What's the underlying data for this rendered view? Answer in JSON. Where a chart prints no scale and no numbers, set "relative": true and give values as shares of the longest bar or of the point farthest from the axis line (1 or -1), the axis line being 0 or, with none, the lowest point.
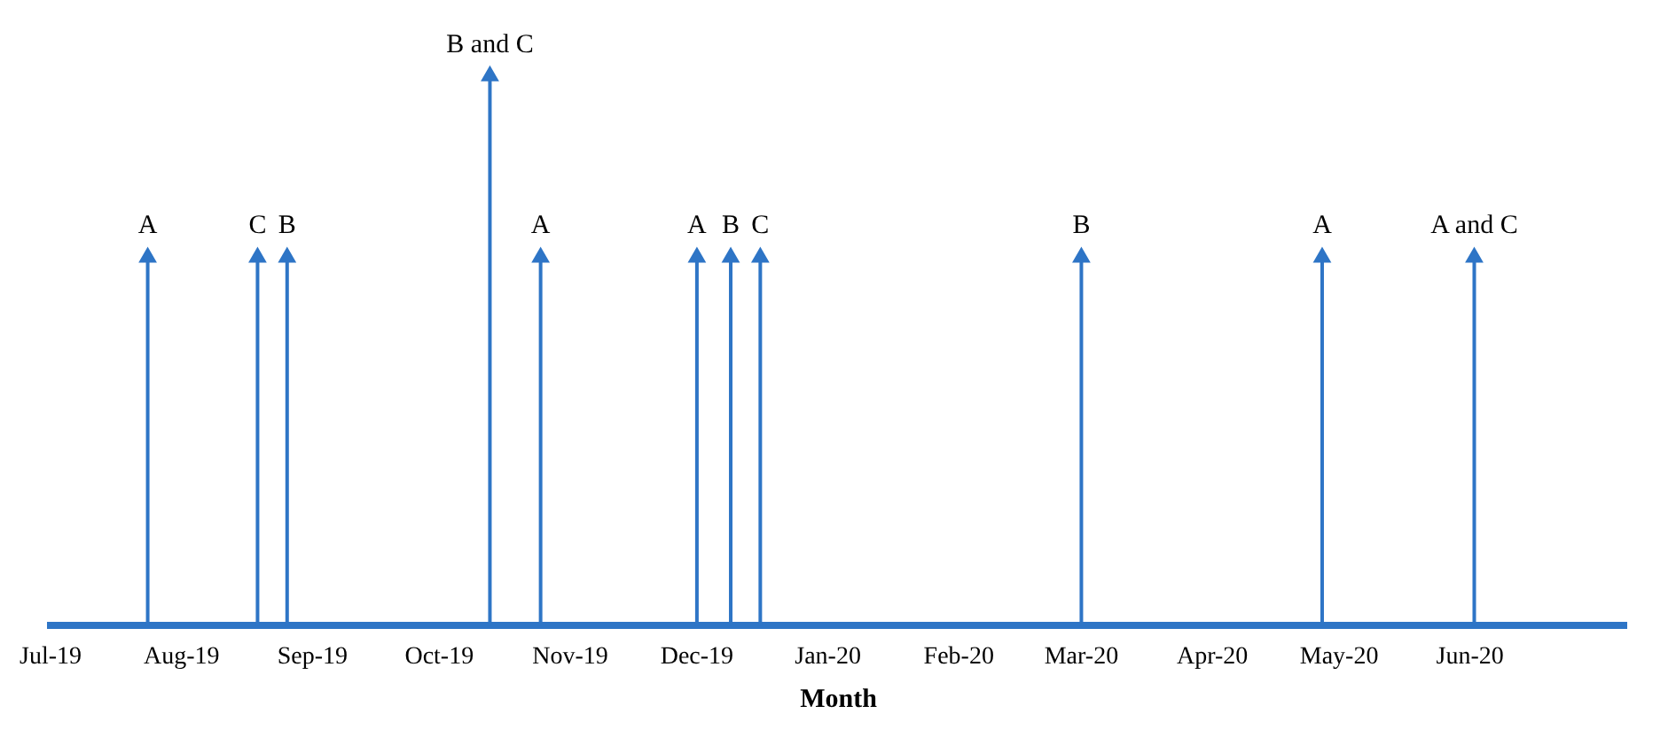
{
  "chart_data": {
    "type": "lollipop",
    "relative": true,
    "xlabel": "Month",
    "marker": "triangle",
    "grid": false,
    "legend": false,
    "x": [
      "2019-07-24",
      "2019-08-19",
      "2019-08-26",
      "2019-10-13",
      "2019-10-25",
      "2019-12-01",
      "2019-12-09",
      "2019-12-16",
      "2020-03-01",
      "2020-04-27",
      "2020-06-02"
    ],
    "series": [
      {
        "color": "#2e75c6",
        "values": [
          0.67,
          0.67,
          0.67,
          1,
          0.67,
          0.67,
          0.67,
          0.67,
          0.67,
          0.67,
          0.67
        ]
      }
    ],
    "annotations": [
      {
        "text": "A",
        "x": "2019-07-24",
        "y": 0.67
      },
      {
        "text": "C",
        "x": "2019-08-19",
        "y": 0.67
      },
      {
        "text": "B",
        "x": "2019-08-26",
        "y": 0.67
      },
      {
        "text": "B and C",
        "x": "2019-10-13",
        "y": 1
      },
      {
        "text": "A",
        "x": "2019-10-25",
        "y": 0.67
      },
      {
        "text": "A",
        "x": "2019-12-01",
        "y": 0.67
      },
      {
        "text": "B",
        "x": "2019-12-09",
        "y": 0.67
      },
      {
        "text": "C",
        "x": "2019-12-16",
        "y": 0.67
      },
      {
        "text": "B",
        "x": "2020-03-01",
        "y": 0.67
      },
      {
        "text": "A",
        "x": "2020-04-27",
        "y": 0.67
      },
      {
        "text": "A and C",
        "x": "2020-06-02",
        "y": 0.67
      }
    ],
    "xlim": [
      "2019-07-01",
      "2020-07-08"
    ],
    "xticks": [
      {
        "value": "2019-07-01",
        "label": "Jul-19"
      },
      {
        "value": "2019-08-01",
        "label": "Aug-19"
      },
      {
        "value": "2019-09-01",
        "label": "Sep-19"
      },
      {
        "value": "2019-10-01",
        "label": "Oct-19"
      },
      {
        "value": "2019-11-01",
        "label": "Nov-19"
      },
      {
        "value": "2019-12-01",
        "label": "Dec-19"
      },
      {
        "value": "2020-01-01",
        "label": "Jan-20"
      },
      {
        "value": "2020-02-01",
        "label": "Feb-20"
      },
      {
        "value": "2020-03-01",
        "label": "Mar-20"
      },
      {
        "value": "2020-04-01",
        "label": "Apr-20"
      },
      {
        "value": "2020-05-01",
        "label": "May-20"
      },
      {
        "value": "2020-06-01",
        "label": "Jun-20"
      }
    ]
  }
}
